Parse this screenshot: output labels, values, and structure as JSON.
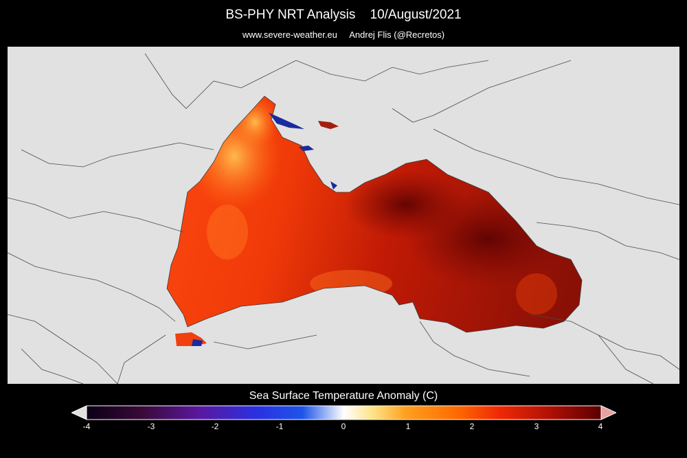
{
  "header": {
    "title": "BS-PHY NRT Analysis    10/August/2021",
    "subtitle": "www.severe-weather.eu     Andrej Flis (@Recretos)"
  },
  "colorbar": {
    "title": "Sea Surface Temperature Anomaly (C)",
    "ticks": [
      "-4",
      "-3",
      "-2",
      "-1",
      "0",
      "1",
      "2",
      "3",
      "4"
    ],
    "range": [
      -4,
      4
    ],
    "colors": [
      "#0a0015",
      "#3a0a3a",
      "#5a18a0",
      "#2a30e0",
      "#1e55e8",
      "#ffffff",
      "#ffe080",
      "#ffa020",
      "#ff6a00",
      "#f02a05",
      "#b01005",
      "#5a0000"
    ],
    "under_color": "#e1e1e1",
    "over_color": "#e8a0a0"
  },
  "map": {
    "land_color": "#e1e1e1",
    "border_color": "#4a4a4a",
    "sea_color_west": "#ff4a10",
    "sea_color_east": "#8a1208",
    "coast_anomaly_color": "#ffb040",
    "cold_spot_color": "#1a2aa0"
  }
}
